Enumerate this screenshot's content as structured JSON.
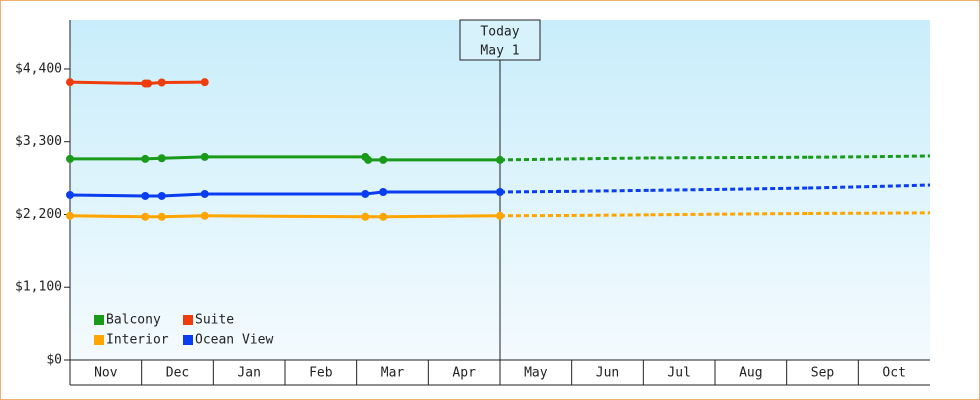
{
  "chart_data": {
    "type": "line",
    "categories": [
      "Nov",
      "Dec",
      "Jan",
      "Feb",
      "Mar",
      "Apr",
      "May",
      "Jun",
      "Jul",
      "Aug",
      "Sep",
      "Oct"
    ],
    "xlim": [
      0,
      12
    ],
    "ylim": [
      0,
      5140
    ],
    "yticks": [
      {
        "value": 0,
        "label": "$0"
      },
      {
        "value": 1100,
        "label": "$1,100"
      },
      {
        "value": 2200,
        "label": "$2,200"
      },
      {
        "value": 3300,
        "label": "$3,300"
      },
      {
        "value": 4400,
        "label": "$4,400"
      }
    ],
    "today": {
      "x": 6,
      "label": [
        "Today",
        "May 1"
      ]
    },
    "legend": "bottom-left",
    "series": [
      {
        "name": "Balcony",
        "color": "#1a9a1a",
        "x": [
          0,
          1.05,
          1.28,
          1.88,
          4.12,
          4.16,
          4.37,
          6,
          7,
          8.1,
          9.1,
          10.3,
          11.3,
          12
        ],
        "values": [
          3040,
          3040,
          3050,
          3070,
          3070,
          3025,
          3025,
          3025,
          3040,
          3055,
          3060,
          3065,
          3075,
          3085
        ]
      },
      {
        "name": "Suite",
        "color": "#f03c0a",
        "x": [
          0,
          1.05,
          1.09,
          1.28,
          1.88
        ],
        "values": [
          4200,
          4180,
          4180,
          4195,
          4200
        ]
      },
      {
        "name": "Interior",
        "color": "#ffa500",
        "x": [
          0,
          1.05,
          1.28,
          1.88,
          4.12,
          4.37,
          6,
          7,
          8.1,
          9.1,
          10.3,
          11.3,
          12
        ],
        "values": [
          2180,
          2165,
          2165,
          2180,
          2165,
          2165,
          2180,
          2185,
          2195,
          2205,
          2215,
          2220,
          2225
        ]
      },
      {
        "name": "Ocean View",
        "color": "#0a3cf0",
        "x": [
          0,
          1.05,
          1.28,
          1.88,
          4.12,
          4.37,
          6,
          7,
          8.1,
          9.1,
          10.3,
          11.3,
          12
        ],
        "values": [
          2495,
          2480,
          2480,
          2510,
          2510,
          2540,
          2540,
          2550,
          2565,
          2580,
          2600,
          2625,
          2645
        ]
      }
    ]
  }
}
